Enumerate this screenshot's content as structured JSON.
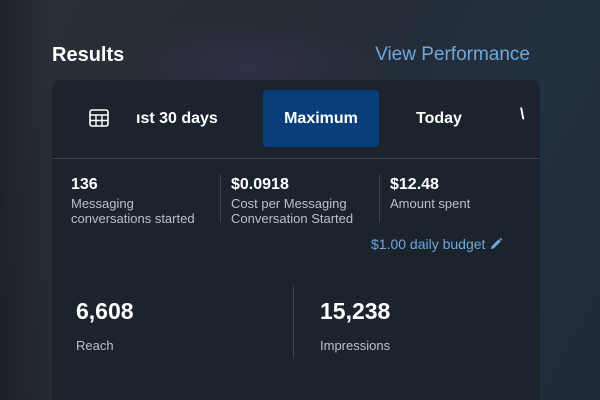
{
  "header": {
    "title": "Results",
    "view_performance_label": "View Performance"
  },
  "tabs": {
    "date_range_label": "ıst 30 days",
    "maximum_label": "Maximum",
    "today_label": "Today",
    "more_label": "\\"
  },
  "stats": [
    {
      "value": "136",
      "label_line1": "Messaging",
      "label_line2": "conversations started"
    },
    {
      "value": "$0.0918",
      "label_line1": "Cost per Messaging",
      "label_line2": "Conversation Started"
    },
    {
      "value": "$12.48",
      "label_line1": "Amount spent",
      "label_line2": ""
    }
  ],
  "budget": {
    "label": "$1.00 daily budget",
    "icon": "pencil-icon"
  },
  "summary": [
    {
      "value": "6,608",
      "label": "Reach"
    },
    {
      "value": "15,238",
      "label": "Impressions"
    }
  ],
  "colors": {
    "accent_link": "#6fa8dc",
    "selected_tab": "#0a3e7a",
    "card_bg": "#1b232d"
  }
}
